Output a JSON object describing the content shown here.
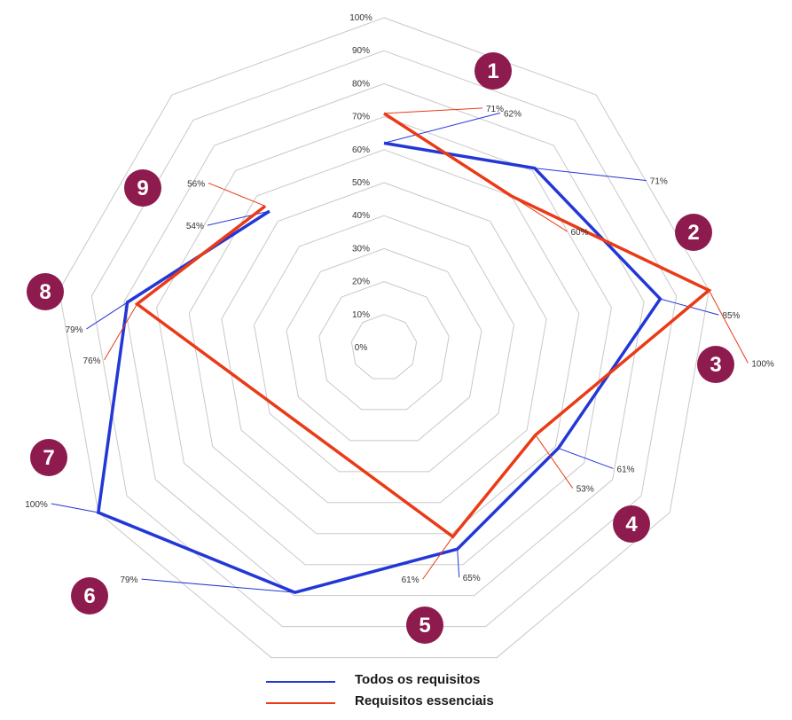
{
  "chart_data": {
    "type": "radar",
    "axes": [
      "1",
      "2",
      "3",
      "4",
      "5",
      "6",
      "7",
      "8",
      "9"
    ],
    "r_ticks": [
      "0%",
      "10%",
      "20%",
      "30%",
      "40%",
      "50%",
      "60%",
      "70%",
      "80%",
      "90%",
      "100%"
    ],
    "rlim": [
      0,
      100
    ],
    "grid": true,
    "legend_position": "bottom",
    "series": [
      {
        "name": "Todos os requisitos",
        "color": "#2337d6",
        "values": [
          62,
          71,
          85,
          61,
          65,
          79,
          100,
          79,
          54
        ],
        "labels": [
          "62%",
          "71%",
          "85%",
          "61%",
          "65%",
          "79%",
          "100%",
          "79%",
          "54%"
        ]
      },
      {
        "name": "Requisitos essenciais",
        "color": "#ea3a16",
        "values": [
          71,
          60,
          100,
          53,
          61,
          null,
          null,
          76,
          56
        ],
        "labels": [
          "71%",
          "60%",
          "100%",
          "53%",
          "61%",
          null,
          null,
          "76%",
          "56%"
        ]
      }
    ]
  },
  "style": {
    "badge_color": "#8e1b4e",
    "grid_color": "#c8c8c8"
  }
}
